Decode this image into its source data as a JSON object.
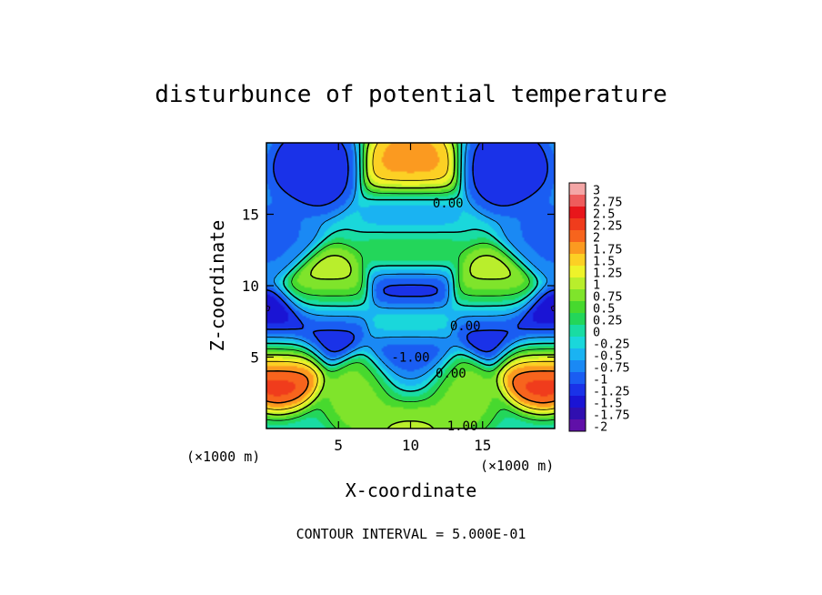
{
  "chart_data": {
    "type": "heatmap",
    "title": "disturbunce of potential temperature",
    "xlabel": "X-coordinate",
    "ylabel": "Z-coordinate",
    "x_unit": "(×1000 m)",
    "z_unit": "(×1000 m)",
    "footer": "CONTOUR INTERVAL = 5.000E-01",
    "xlim": [
      0,
      20
    ],
    "ylim": [
      0,
      20
    ],
    "x_ticks": [
      {
        "value": 5,
        "label": "5"
      },
      {
        "value": 10,
        "label": "10"
      },
      {
        "value": 15,
        "label": "15"
      }
    ],
    "y_ticks": [
      {
        "value": 5,
        "label": "5"
      },
      {
        "value": 10,
        "label": "10"
      },
      {
        "value": 15,
        "label": "15"
      }
    ],
    "contour_interval": 0.5,
    "contour_labels": [
      {
        "x": 12.6,
        "z": 15.8,
        "label": "0.00"
      },
      {
        "x": 13.8,
        "z": 7.2,
        "label": "0.00"
      },
      {
        "x": 12.8,
        "z": 3.9,
        "label": "0.00"
      },
      {
        "x": 10.0,
        "z": 5.0,
        "label": "-1.00"
      },
      {
        "x": 13.6,
        "z": 0.2,
        "label": "1.00"
      }
    ],
    "colorbar": {
      "min": -2,
      "max": 3,
      "levels": [
        {
          "value": 3,
          "label": "3",
          "color": "#f4a6a6"
        },
        {
          "value": 2.75,
          "label": "2.75",
          "color": "#ee5c5c"
        },
        {
          "value": 2.5,
          "label": "2.5",
          "color": "#e8161b"
        },
        {
          "value": 2.25,
          "label": "2.25",
          "color": "#f03c1c"
        },
        {
          "value": 2,
          "label": "2",
          "color": "#f7641d"
        },
        {
          "value": 1.75,
          "label": "1.75",
          "color": "#fb9a20"
        },
        {
          "value": 1.5,
          "label": "1.5",
          "color": "#fcd024"
        },
        {
          "value": 1.25,
          "label": "1.25",
          "color": "#eef32a"
        },
        {
          "value": 1,
          "label": "1",
          "color": "#b9ee2c"
        },
        {
          "value": 0.75,
          "label": "0.75",
          "color": "#7fe42b"
        },
        {
          "value": 0.5,
          "label": "0.5",
          "color": "#47d92e"
        },
        {
          "value": 0.25,
          "label": "0.25",
          "color": "#23d65a"
        },
        {
          "value": 0,
          "label": "0",
          "color": "#19dca3"
        },
        {
          "value": -0.25,
          "label": "-0.25",
          "color": "#1ad7db"
        },
        {
          "value": -0.5,
          "label": "-0.5",
          "color": "#1ab3f2"
        },
        {
          "value": -0.75,
          "label": "-0.75",
          "color": "#1a89f4"
        },
        {
          "value": -1,
          "label": "-1",
          "color": "#1a5df2"
        },
        {
          "value": -1.25,
          "label": "-1.25",
          "color": "#1a32e8"
        },
        {
          "value": -1.5,
          "label": "-1.5",
          "color": "#1a14d4"
        },
        {
          "value": -1.75,
          "label": "-1.75",
          "color": "#300fb0"
        },
        {
          "value": -2,
          "label": "-2",
          "color": "#6010a8"
        }
      ]
    },
    "field_features": [
      {
        "x": 10.0,
        "z": 18.3,
        "value": 1.9
      },
      {
        "x": 3.2,
        "z": 18.2,
        "value": -1.2
      },
      {
        "x": 16.8,
        "z": 18.2,
        "value": -1.2
      },
      {
        "x": 10.0,
        "z": 14.8,
        "value": -0.6
      },
      {
        "x": 0.4,
        "z": 13.5,
        "value": -0.8
      },
      {
        "x": 19.6,
        "z": 13.5,
        "value": -0.8
      },
      {
        "x": 10.0,
        "z": 12.2,
        "value": 0.9
      },
      {
        "x": 10.0,
        "z": 9.8,
        "value": -1.6
      },
      {
        "x": 4.2,
        "z": 9.4,
        "value": 1.3
      },
      {
        "x": 15.8,
        "z": 9.4,
        "value": 1.3
      },
      {
        "x": 4.2,
        "z": 7.6,
        "value": -1.4
      },
      {
        "x": 15.8,
        "z": 7.6,
        "value": -1.4
      },
      {
        "x": 0.8,
        "z": 6.6,
        "value": -1.8
      },
      {
        "x": 19.2,
        "z": 6.6,
        "value": -1.8
      },
      {
        "x": 10.0,
        "z": 7.2,
        "value": 0.5
      },
      {
        "x": 10.0,
        "z": 5.3,
        "value": -1.7
      },
      {
        "x": 0.8,
        "z": 4.7,
        "value": 2.6
      },
      {
        "x": 19.2,
        "z": 4.7,
        "value": 2.6
      },
      {
        "x": 10.0,
        "z": 3.6,
        "value": -0.4
      },
      {
        "x": 7.2,
        "z": 2.5,
        "value": 0.9
      },
      {
        "x": 12.8,
        "z": 2.5,
        "value": 0.9
      },
      {
        "x": 10.0,
        "z": 0.6,
        "value": 1.1
      }
    ]
  }
}
